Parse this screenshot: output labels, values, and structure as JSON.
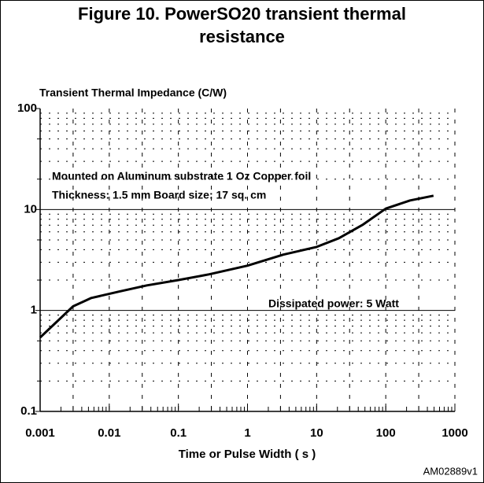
{
  "chart_data": {
    "type": "line",
    "title": "Figure 10. PowerSO20 transient thermal resistance",
    "ylabel": "Transient Thermal Impedance (C/W)",
    "xlabel": "Time or Pulse Width ( s )",
    "code": "AM02889v1",
    "annotations": [
      "Mounted on Aluminum substrate  1 Oz Copper foil",
      "Thickness: 1.5 mm    Board size: 17 sq. cm",
      "Dissipated power: 5 Watt"
    ],
    "x": [
      0.001,
      0.003,
      0.0055,
      0.014,
      0.035,
      0.1,
      0.28,
      1,
      3.3,
      10,
      21,
      47,
      100,
      225,
      490
    ],
    "values": [
      0.54,
      1.1,
      1.33,
      1.54,
      1.77,
      2.0,
      2.28,
      2.78,
      3.57,
      4.26,
      5.2,
      7.1,
      10.2,
      12.3,
      13.7
    ],
    "color": "#000000",
    "xlog": true,
    "ylog": true,
    "grid": true,
    "xlim": [
      0.001,
      1000
    ],
    "ylim": [
      0.1,
      100
    ],
    "xticks": [
      0.001,
      0.01,
      0.1,
      1,
      10,
      100,
      1000
    ],
    "yticks": [
      0.1,
      1,
      10,
      100
    ]
  }
}
